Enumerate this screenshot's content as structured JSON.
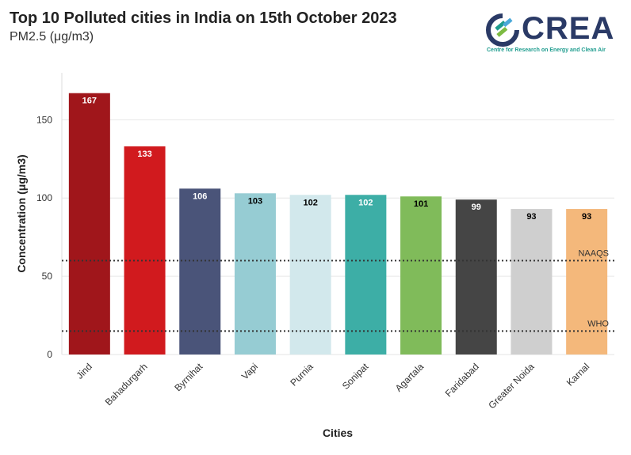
{
  "header": {
    "title": "Top 10 Polluted cities in India on 15th October 2023",
    "subtitle": "PM2.5 (μg/m3)"
  },
  "logo": {
    "name": "CREA",
    "tagline": "Centre for Research on Energy and Clean Air"
  },
  "chart_data": {
    "type": "bar",
    "title": "Top 10 Polluted cities in India on 15th October 2023",
    "subtitle": "PM2.5 (μg/m3)",
    "xlabel": "Cities",
    "ylabel": "Concentration (μg/m3)",
    "ylim": [
      0,
      180
    ],
    "yticks": [
      0,
      50,
      100,
      150
    ],
    "grid": true,
    "categories": [
      "Jind",
      "Bahadurgarh",
      "Byrnihat",
      "Vapi",
      "Purnia",
      "Sonipat",
      "Agartala",
      "Faridabad",
      "Greater Noida",
      "Karnal"
    ],
    "values": [
      167,
      133,
      106,
      103,
      102,
      102,
      101,
      99,
      93,
      93
    ],
    "colors": [
      "#a0161b",
      "#d11a1e",
      "#4a5479",
      "#96ccd3",
      "#d2e8ec",
      "#3daea6",
      "#80bb5a",
      "#454545",
      "#cfcfcf",
      "#f4b87b"
    ],
    "label_colors": [
      "#ffffff",
      "#ffffff",
      "#ffffff",
      "#000000",
      "#000000",
      "#ffffff",
      "#000000",
      "#ffffff",
      "#000000",
      "#000000"
    ],
    "reference_lines": [
      {
        "label": "NAAQS",
        "value": 60
      },
      {
        "label": "WHO",
        "value": 15
      }
    ]
  }
}
